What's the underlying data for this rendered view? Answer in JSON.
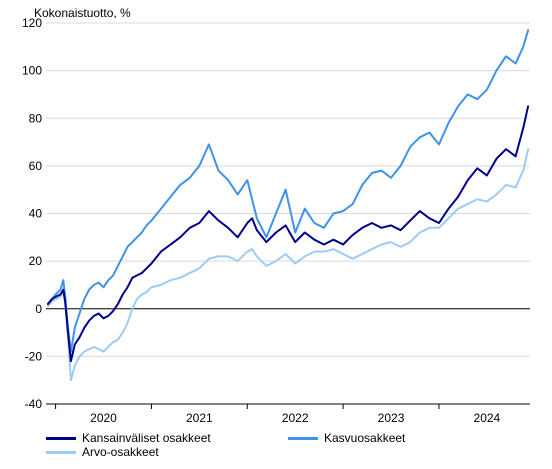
{
  "chart_data": {
    "type": "line",
    "ylabel": "Kokonaistuotto, %",
    "xlabel": "",
    "title": "",
    "ylim": [
      -40,
      120
    ],
    "yticks": [
      -40,
      -20,
      0,
      20,
      40,
      60,
      80,
      100,
      120
    ],
    "xlim": [
      2019.9,
      2024.95
    ],
    "x_tick_labels": [
      "2020",
      "2021",
      "2022",
      "2023",
      "2024"
    ],
    "grid": true,
    "legend_position": "bottom",
    "series": [
      {
        "name": "Kansainväliset osakkeet",
        "color": "#00008b",
        "x": [
          2019.92,
          2019.96,
          2020.0,
          2020.05,
          2020.08,
          2020.1,
          2020.13,
          2020.16,
          2020.2,
          2020.25,
          2020.3,
          2020.35,
          2020.4,
          2020.45,
          2020.5,
          2020.55,
          2020.6,
          2020.65,
          2020.7,
          2020.75,
          2020.8,
          2020.85,
          2020.9,
          2020.95,
          2021.0,
          2021.1,
          2021.2,
          2021.3,
          2021.4,
          2021.5,
          2021.6,
          2021.7,
          2021.8,
          2021.9,
          2022.0,
          2022.05,
          2022.1,
          2022.2,
          2022.3,
          2022.4,
          2022.5,
          2022.6,
          2022.7,
          2022.8,
          2022.9,
          2023.0,
          2023.1,
          2023.2,
          2023.3,
          2023.4,
          2023.5,
          2023.6,
          2023.7,
          2023.8,
          2023.9,
          2024.0,
          2024.1,
          2024.2,
          2024.3,
          2024.4,
          2024.5,
          2024.6,
          2024.7,
          2024.8,
          2024.88,
          2024.93
        ],
        "values": [
          2,
          4,
          5,
          6,
          8,
          3,
          -10,
          -22,
          -15,
          -12,
          -8,
          -5,
          -3,
          -2,
          -4,
          -3,
          -1,
          2,
          6,
          9,
          13,
          14,
          15,
          17,
          19,
          24,
          27,
          30,
          34,
          36,
          41,
          37,
          34,
          30,
          36,
          38,
          33,
          28,
          32,
          35,
          28,
          32,
          29,
          27,
          29,
          27,
          31,
          34,
          36,
          34,
          35,
          33,
          37,
          41,
          38,
          36,
          42,
          47,
          54,
          59,
          56,
          63,
          67,
          64,
          76,
          85
        ]
      },
      {
        "name": "Kasvuosakkeet",
        "color": "#3f92e8",
        "x": [
          2019.92,
          2019.96,
          2020.0,
          2020.05,
          2020.08,
          2020.1,
          2020.13,
          2020.16,
          2020.2,
          2020.25,
          2020.3,
          2020.35,
          2020.4,
          2020.45,
          2020.5,
          2020.55,
          2020.6,
          2020.65,
          2020.7,
          2020.75,
          2020.8,
          2020.85,
          2020.9,
          2020.95,
          2021.0,
          2021.1,
          2021.2,
          2021.3,
          2021.4,
          2021.5,
          2021.6,
          2021.7,
          2021.8,
          2021.9,
          2022.0,
          2022.05,
          2022.1,
          2022.2,
          2022.3,
          2022.4,
          2022.5,
          2022.6,
          2022.7,
          2022.8,
          2022.9,
          2023.0,
          2023.1,
          2023.2,
          2023.3,
          2023.4,
          2023.5,
          2023.6,
          2023.7,
          2023.8,
          2023.9,
          2024.0,
          2024.1,
          2024.2,
          2024.3,
          2024.4,
          2024.5,
          2024.6,
          2024.7,
          2024.8,
          2024.88,
          2024.93
        ],
        "values": [
          2,
          4,
          6,
          8,
          12,
          5,
          -8,
          -18,
          -8,
          -2,
          4,
          8,
          10,
          11,
          9,
          12,
          14,
          18,
          22,
          26,
          28,
          30,
          32,
          35,
          37,
          42,
          47,
          52,
          55,
          60,
          69,
          58,
          54,
          48,
          54,
          46,
          38,
          30,
          40,
          50,
          32,
          42,
          36,
          34,
          40,
          41,
          44,
          52,
          57,
          58,
          55,
          60,
          68,
          72,
          74,
          69,
          78,
          85,
          90,
          88,
          92,
          100,
          106,
          103,
          110,
          117
        ]
      },
      {
        "name": "Arvo-osakkeet",
        "color": "#9ecbf5",
        "x": [
          2019.92,
          2019.96,
          2020.0,
          2020.05,
          2020.08,
          2020.1,
          2020.13,
          2020.16,
          2020.2,
          2020.25,
          2020.3,
          2020.35,
          2020.4,
          2020.45,
          2020.5,
          2020.55,
          2020.6,
          2020.65,
          2020.7,
          2020.75,
          2020.8,
          2020.85,
          2020.9,
          2020.95,
          2021.0,
          2021.1,
          2021.2,
          2021.3,
          2021.4,
          2021.5,
          2021.6,
          2021.7,
          2021.8,
          2021.9,
          2022.0,
          2022.05,
          2022.1,
          2022.2,
          2022.3,
          2022.4,
          2022.5,
          2022.6,
          2022.7,
          2022.8,
          2022.9,
          2023.0,
          2023.1,
          2023.2,
          2023.3,
          2023.4,
          2023.5,
          2023.6,
          2023.7,
          2023.8,
          2023.9,
          2024.0,
          2024.1,
          2024.2,
          2024.3,
          2024.4,
          2024.5,
          2024.6,
          2024.7,
          2024.8,
          2024.88,
          2024.93
        ],
        "values": [
          1,
          3,
          4,
          5,
          7,
          2,
          -12,
          -30,
          -24,
          -20,
          -18,
          -17,
          -16,
          -17,
          -18,
          -16,
          -14,
          -13,
          -10,
          -6,
          0,
          4,
          6,
          7,
          9,
          10,
          12,
          13,
          15,
          17,
          21,
          22,
          22,
          20,
          24,
          25,
          22,
          18,
          20,
          23,
          19,
          22,
          24,
          24,
          25,
          23,
          21,
          23,
          25,
          27,
          28,
          26,
          28,
          32,
          34,
          34,
          38,
          42,
          44,
          46,
          45,
          48,
          52,
          51,
          58,
          67
        ]
      }
    ]
  }
}
